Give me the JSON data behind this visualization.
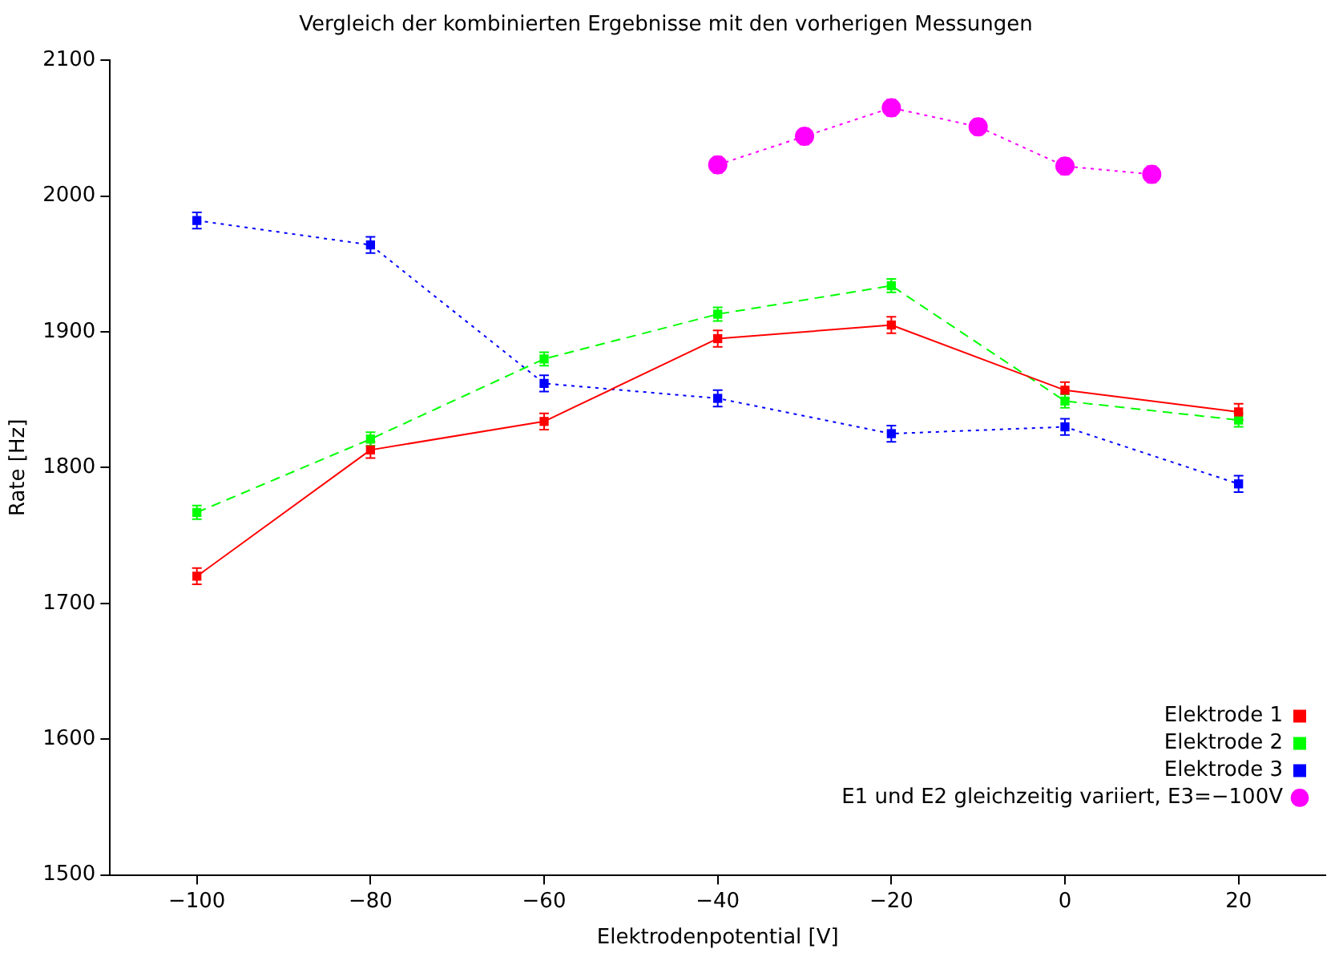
{
  "chart_data": {
    "type": "line",
    "title": "Vergleich der kombinierten Ergebnisse mit den vorherigen Messungen",
    "xlabel": "Elektrodenpotential [V]",
    "ylabel": "Rate [Hz]",
    "xlim": [
      -110,
      30
    ],
    "xticks": [
      {
        "value": -100,
        "label": "−100"
      },
      {
        "value": -80,
        "label": "−80"
      },
      {
        "value": -60,
        "label": "−60"
      },
      {
        "value": -40,
        "label": "−40"
      },
      {
        "value": -20,
        "label": "−20"
      },
      0,
      20
    ],
    "ylim": [
      1500,
      2100
    ],
    "yticks": [
      1500,
      1600,
      1700,
      1800,
      1900,
      2000,
      2100
    ],
    "grid": false,
    "legend": "bottom right",
    "series": [
      {
        "name": "Elektrode 1",
        "color": "#ff0000",
        "line_style": "solid",
        "marker": "square",
        "x": [
          -100,
          -80,
          -60,
          -40,
          -20,
          0,
          20
        ],
        "values": [
          1720,
          1813,
          1834,
          1895,
          1905,
          1857,
          1841
        ],
        "errors": [
          6,
          6,
          6,
          6,
          6,
          6,
          6
        ]
      },
      {
        "name": "Elektrode 2",
        "color": "#00ff00",
        "line_style": "dashed",
        "marker": "square",
        "x": [
          -100,
          -80,
          -60,
          -40,
          -20,
          0,
          20
        ],
        "values": [
          1767,
          1821,
          1880,
          1913,
          1934,
          1849,
          1835
        ],
        "errors": [
          5,
          5,
          5,
          5,
          5,
          5,
          5
        ]
      },
      {
        "name": "Elektrode 3",
        "color": "#0000ff",
        "line_style": "dotted",
        "marker": "square",
        "x": [
          -100,
          -80,
          -60,
          -40,
          -20,
          0,
          20
        ],
        "values": [
          1982,
          1964,
          1862,
          1851,
          1825,
          1830,
          1788
        ],
        "errors": [
          6,
          6,
          6,
          6,
          6,
          6,
          6
        ]
      },
      {
        "name": "E1 und E2 gleichzeitig variiert, E3=−100V",
        "color": "#ff00ff",
        "line_style": "dotted",
        "marker": "circle",
        "x": [
          -40,
          -30,
          -20,
          -10,
          0,
          10
        ],
        "values": [
          2023,
          2044,
          2065,
          2051,
          2022,
          2016
        ],
        "errors": [
          6,
          6,
          6,
          6,
          6,
          6
        ]
      }
    ]
  }
}
